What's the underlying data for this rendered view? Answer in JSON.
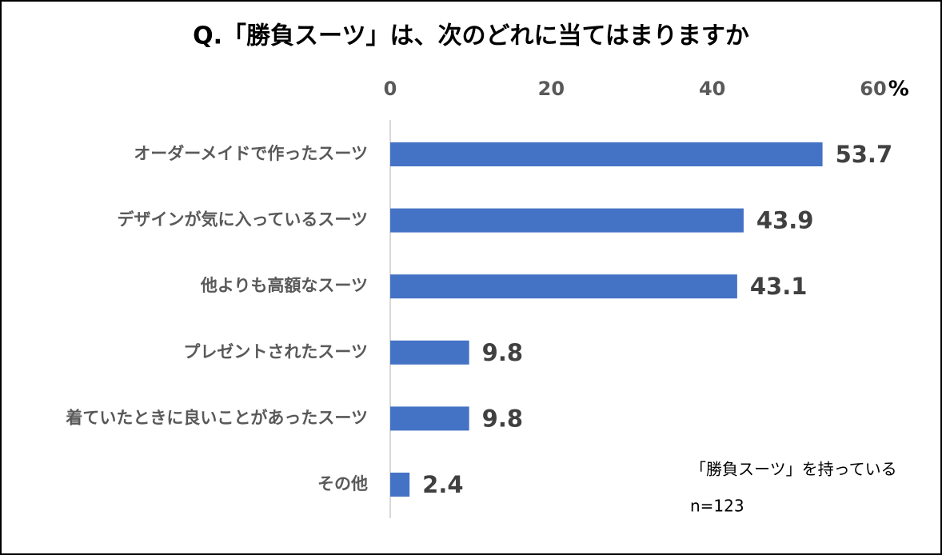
{
  "chart_data": {
    "type": "bar",
    "orientation": "horizontal",
    "title": "Q.「勝負スーツ」は、次のどれに当てはまりますか",
    "categories": [
      "オーダーメイドで作ったスーツ",
      "デザインが気に入っているスーツ",
      "他よりも高額なスーツ",
      "プレゼントされたスーツ",
      "着ていたときに良いことがあったスーツ",
      "その他"
    ],
    "values": [
      53.7,
      43.9,
      43.1,
      9.8,
      9.8,
      2.4
    ],
    "color": "#4472c4",
    "xlim": [
      0,
      60
    ],
    "xticks": [
      0,
      20,
      40,
      60
    ],
    "x_unit": "%",
    "annotations": [
      "「勝負スーツ」を持っている",
      "n=123"
    ]
  }
}
